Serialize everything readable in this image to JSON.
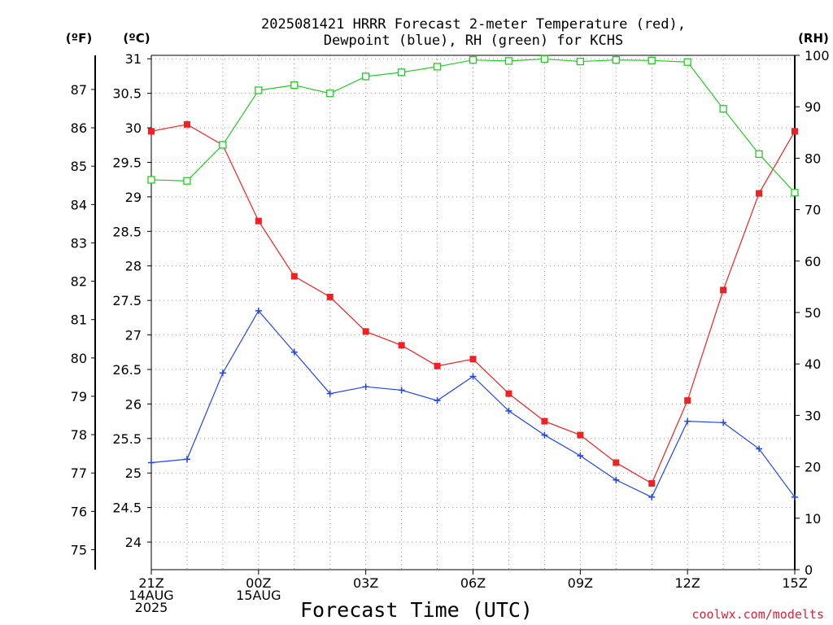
{
  "chart_data": {
    "type": "line",
    "title": "2025081421 HRRR Forecast 2-meter Temperature (red),",
    "subtitle": "Dewpoint (blue), RH (green) for KCHS",
    "xlabel": "Forecast Time (UTC)",
    "left_unit_f": "(ºF)",
    "left_unit_c": "(ºC)",
    "right_unit": "(RH)",
    "credit": "coolwx.com/modelts",
    "grid": true,
    "x_ticks": [
      {
        "hour": 0,
        "lines": [
          "21Z",
          "14AUG",
          "2025"
        ]
      },
      {
        "hour": 3,
        "lines": [
          "00Z",
          "15AUG"
        ]
      },
      {
        "hour": 6,
        "lines": [
          "03Z"
        ]
      },
      {
        "hour": 9,
        "lines": [
          "06Z"
        ]
      },
      {
        "hour": 12,
        "lines": [
          "09Z"
        ]
      },
      {
        "hour": 15,
        "lines": [
          "12Z"
        ]
      },
      {
        "hour": 18,
        "lines": [
          "15Z"
        ]
      }
    ],
    "xlim": [
      0,
      18
    ],
    "celsius_axis": {
      "ylim": [
        23.6,
        31.05
      ],
      "ticks": [
        24,
        24.5,
        25,
        25.5,
        26,
        26.5,
        27,
        27.5,
        28,
        28.5,
        29,
        29.5,
        30,
        30.5,
        31
      ]
    },
    "fahrenheit_axis": {
      "ticks": [
        75,
        76,
        77,
        78,
        79,
        80,
        81,
        82,
        83,
        84,
        85,
        86,
        87
      ]
    },
    "rh_axis": {
      "ylim": [
        0,
        100
      ],
      "ticks": [
        0,
        10,
        20,
        30,
        40,
        50,
        60,
        70,
        80,
        90,
        100
      ]
    },
    "series": [
      {
        "name": "Temperature",
        "axis": "celsius",
        "color": "#ee2222",
        "marker": "filled-square",
        "values": [
          29.95,
          30.05,
          29.75,
          28.65,
          27.85,
          27.55,
          27.05,
          26.85,
          26.55,
          26.65,
          26.15,
          25.75,
          25.55,
          25.15,
          24.85,
          26.05,
          27.65,
          29.05,
          29.95
        ]
      },
      {
        "name": "Dewpoint",
        "axis": "celsius",
        "color": "#2244ee",
        "marker": "plus",
        "values": [
          25.15,
          25.2,
          26.45,
          27.35,
          26.75,
          26.15,
          26.25,
          26.2,
          26.05,
          26.4,
          25.9,
          25.55,
          25.25,
          24.9,
          24.65,
          25.75,
          25.73,
          25.35,
          24.65
        ]
      },
      {
        "name": "RH",
        "axis": "rh",
        "color": "#22cc22",
        "marker": "open-square",
        "values": [
          75.8,
          75.6,
          82.6,
          93.2,
          94.2,
          92.6,
          95.9,
          96.7,
          97.8,
          99.1,
          98.9,
          99.3,
          98.8,
          99.1,
          99.0,
          98.7,
          89.6,
          80.8,
          73.3
        ]
      }
    ]
  }
}
